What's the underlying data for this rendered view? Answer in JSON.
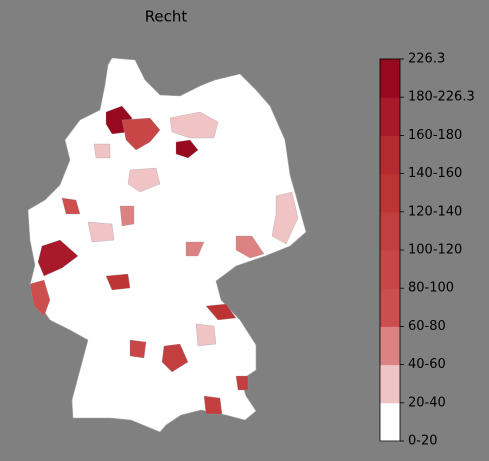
{
  "title": "Recht",
  "colorbar": {
    "labels": [
      "0-20",
      "20-40",
      "40-60",
      "60-80",
      "80-100",
      "100-120",
      "120-140",
      "140-160",
      "160-180",
      "180-226.3",
      "226.3"
    ],
    "colors": [
      "#ffffff",
      "#f0c4c4",
      "#dc8282",
      "#cc4e4e",
      "#c84646",
      "#c33e3e",
      "#bd3434",
      "#b42a2e",
      "#a81a2a",
      "#98081f"
    ]
  }
}
